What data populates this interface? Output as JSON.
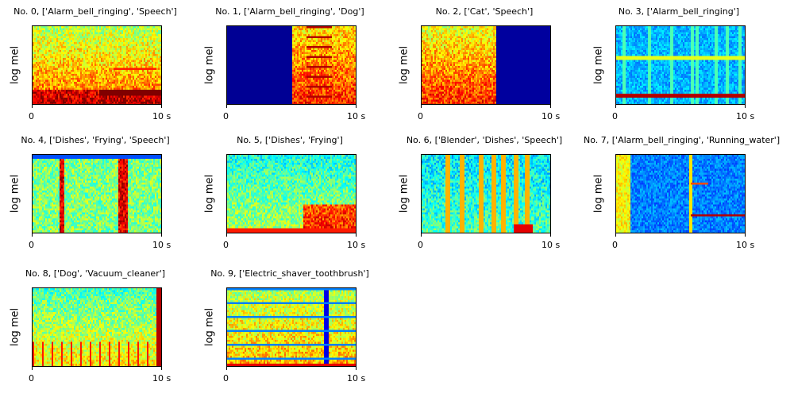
{
  "chart_data": [
    {
      "type": "heatmap",
      "title": "No. 0, ['Alarm_bell_ringing', 'Speech']",
      "ylabel": "log mel",
      "xticks": [
        "0",
        "10 s"
      ],
      "xlim": [
        0,
        10
      ],
      "colormap": "jet"
    },
    {
      "type": "heatmap",
      "title": "No. 1, ['Alarm_bell_ringing', 'Dog']",
      "ylabel": "log mel",
      "xticks": [
        "0",
        "10 s"
      ],
      "xlim": [
        0,
        10
      ],
      "colormap": "jet"
    },
    {
      "type": "heatmap",
      "title": "No. 2, ['Cat', 'Speech']",
      "ylabel": "log mel",
      "xticks": [
        "0",
        "10 s"
      ],
      "xlim": [
        0,
        10
      ],
      "colormap": "jet"
    },
    {
      "type": "heatmap",
      "title": "No. 3, ['Alarm_bell_ringing']",
      "ylabel": "log mel",
      "xticks": [
        "0",
        "10 s"
      ],
      "xlim": [
        0,
        10
      ],
      "colormap": "jet"
    },
    {
      "type": "heatmap",
      "title": "No. 4, ['Dishes', 'Frying', 'Speech']",
      "ylabel": "log mel",
      "xticks": [
        "0",
        "10 s"
      ],
      "xlim": [
        0,
        10
      ],
      "colormap": "jet"
    },
    {
      "type": "heatmap",
      "title": "No. 5, ['Dishes', 'Frying']",
      "ylabel": "log mel",
      "xticks": [
        "0",
        "10 s"
      ],
      "xlim": [
        0,
        10
      ],
      "colormap": "jet"
    },
    {
      "type": "heatmap",
      "title": "No. 6, ['Blender', 'Dishes', 'Speech']",
      "ylabel": "log mel",
      "xticks": [
        "0",
        "10 s"
      ],
      "xlim": [
        0,
        10
      ],
      "colormap": "jet"
    },
    {
      "type": "heatmap",
      "title": "No. 7, ['Alarm_bell_ringing', 'Running_water']",
      "ylabel": "log mel",
      "xticks": [
        "0",
        "10 s"
      ],
      "xlim": [
        0,
        10
      ],
      "colormap": "jet"
    },
    {
      "type": "heatmap",
      "title": "No. 8, ['Dog', 'Vacuum_cleaner']",
      "ylabel": "log mel",
      "xticks": [
        "0",
        "10 s"
      ],
      "xlim": [
        0,
        10
      ],
      "colormap": "jet"
    },
    {
      "type": "heatmap",
      "title": "No. 9, ['Electric_shaver_toothbrush']",
      "ylabel": "log mel",
      "xticks": [
        "0",
        "10 s"
      ],
      "xlim": [
        0,
        10
      ],
      "colormap": "jet"
    }
  ]
}
